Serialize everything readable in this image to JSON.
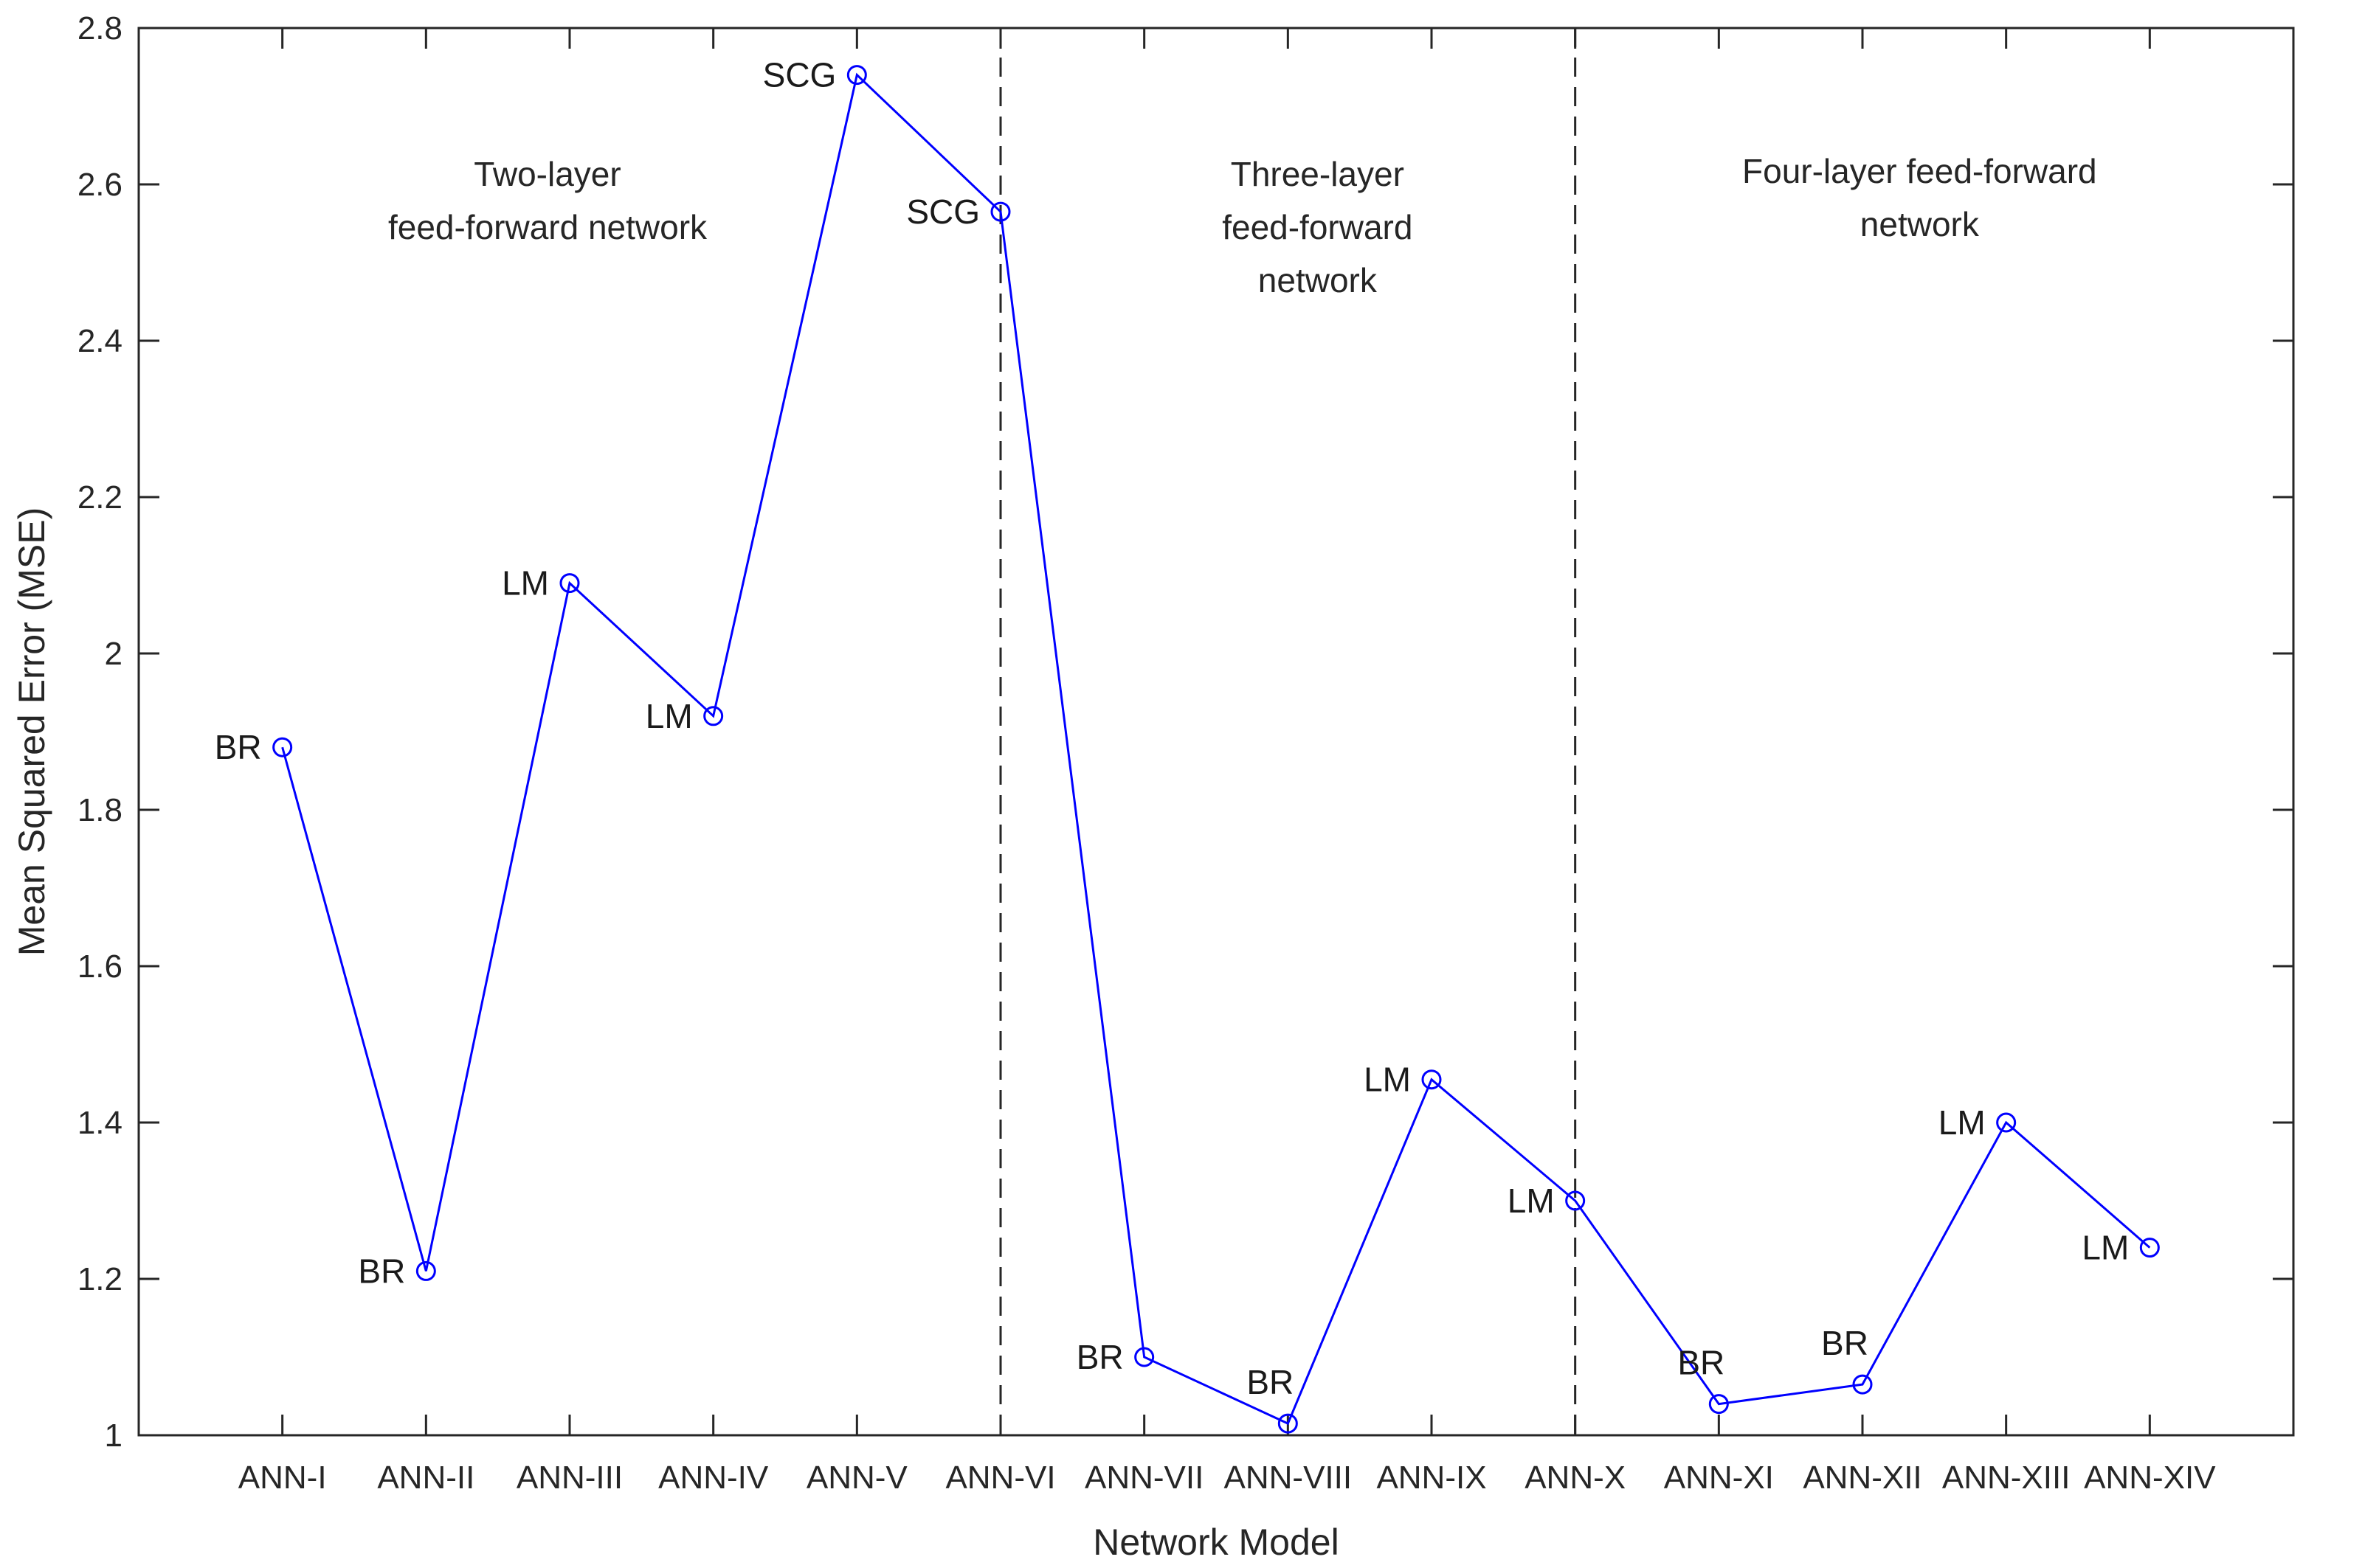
{
  "chart_data": {
    "type": "line",
    "title": "",
    "xlabel": "Network Model",
    "ylabel": "Mean Squared Error (MSE)",
    "ylim": [
      1,
      2.8
    ],
    "yticks": [
      "1",
      "1.2",
      "1.4",
      "1.6",
      "1.8",
      "2",
      "2.2",
      "2.4",
      "2.6",
      "2.8"
    ],
    "categories": [
      "ANN-I",
      "ANN-II",
      "ANN-III",
      "ANN-IV",
      "ANN-V",
      "ANN-VI",
      "ANN-VII",
      "ANN-VIII",
      "ANN-IX",
      "ANN-X",
      "ANN-XI",
      "ANN-XII",
      "ANN-XIII",
      "ANN-XIV"
    ],
    "series": [
      {
        "values": [
          1.88,
          1.21,
          2.09,
          1.92,
          2.74,
          2.565,
          1.1,
          1.015,
          1.455,
          1.3,
          1.04,
          1.065,
          1.4,
          1.24
        ],
        "labels": [
          "BR",
          "BR",
          "LM",
          "LM",
          "SCG",
          "SCG",
          "BR",
          "BR",
          "LM",
          "LM",
          "BR",
          "BR",
          "LM",
          "LM"
        ],
        "color": "#0000ff",
        "marker": "circle"
      }
    ],
    "dividers_after_category": [
      "ANN-VI",
      "ANN-X"
    ],
    "regions": [
      {
        "lines": [
          "Two-layer",
          "feed-forward network"
        ]
      },
      {
        "lines": [
          "Three-layer",
          "feed-forward",
          "network"
        ]
      },
      {
        "lines": [
          "Four-layer feed-forward",
          "network"
        ]
      }
    ],
    "grid": false
  }
}
